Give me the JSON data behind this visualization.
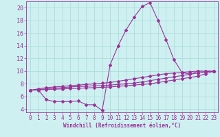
{
  "xlabel": "Windchill (Refroidissement éolien,°C)",
  "ylabel": "",
  "bg_color": "#cff0f0",
  "grid_color": "#aadddd",
  "line_color": "#993399",
  "xlim": [
    -0.5,
    23.5
  ],
  "ylim": [
    3.5,
    21.0
  ],
  "xticks": [
    0,
    1,
    2,
    3,
    4,
    5,
    6,
    7,
    8,
    9,
    10,
    11,
    12,
    13,
    14,
    15,
    16,
    17,
    18,
    19,
    20,
    21,
    22,
    23
  ],
  "yticks": [
    4,
    6,
    8,
    10,
    12,
    14,
    16,
    18,
    20
  ],
  "x": [
    0,
    1,
    2,
    3,
    4,
    5,
    6,
    7,
    8,
    9,
    10,
    11,
    12,
    13,
    14,
    15,
    16,
    17,
    18,
    19,
    20,
    21,
    22,
    23
  ],
  "line1": [
    7.0,
    7.0,
    5.5,
    5.2,
    5.2,
    5.2,
    5.3,
    4.7,
    4.7,
    3.8,
    11.0,
    14.0,
    16.5,
    18.5,
    20.2,
    20.8,
    18.0,
    15.0,
    11.8,
    9.8,
    9.5,
    10.0,
    10.0,
    10.0
  ],
  "line2": [
    7.0,
    7.2,
    7.4,
    7.5,
    7.6,
    7.7,
    7.8,
    7.9,
    8.0,
    8.1,
    8.2,
    8.4,
    8.6,
    8.8,
    9.0,
    9.2,
    9.4,
    9.6,
    9.7,
    9.8,
    9.9,
    10.0,
    10.0,
    10.0
  ],
  "line3": [
    7.0,
    7.1,
    7.2,
    7.3,
    7.4,
    7.5,
    7.6,
    7.6,
    7.7,
    7.7,
    7.8,
    7.9,
    8.0,
    8.1,
    8.3,
    8.5,
    8.7,
    8.9,
    9.1,
    9.3,
    9.5,
    9.7,
    9.9,
    10.0
  ],
  "line4": [
    7.0,
    7.05,
    7.1,
    7.15,
    7.2,
    7.25,
    7.3,
    7.35,
    7.4,
    7.45,
    7.5,
    7.6,
    7.7,
    7.8,
    7.9,
    8.0,
    8.2,
    8.4,
    8.6,
    8.8,
    9.0,
    9.2,
    9.6,
    10.0
  ],
  "tick_fontsize": 5.5,
  "xlabel_fontsize": 5.5,
  "marker_size": 2.0,
  "line_width": 0.8
}
